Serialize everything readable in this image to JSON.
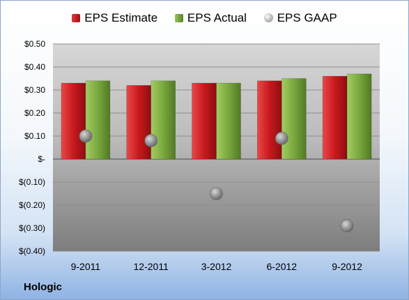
{
  "company": "Hologic",
  "chart_data": {
    "type": "bar",
    "categories": [
      "9-2011",
      "12-2011",
      "3-2012",
      "6-2012",
      "9-2012"
    ],
    "series": [
      {
        "name": "EPS Estimate",
        "values": [
          0.33,
          0.32,
          0.33,
          0.34,
          0.36
        ],
        "color": "#c0191c"
      },
      {
        "name": "EPS Actual",
        "values": [
          0.34,
          0.34,
          0.33,
          0.35,
          0.37
        ],
        "color": "#76a03a"
      }
    ],
    "points": {
      "name": "EPS GAAP",
      "values": [
        0.1,
        0.08,
        -0.15,
        0.09,
        -0.29
      ],
      "color": "#9a9a9a"
    },
    "yticks": [
      "$0.50",
      "$0.40",
      "$0.30",
      "$0.20",
      "$0.10",
      "$-",
      "$(0.10)",
      "$(0.20)",
      "$(0.30)",
      "$(0.40)"
    ],
    "ylim": [
      -0.4,
      0.5
    ],
    "legend": "top",
    "grid": true
  }
}
